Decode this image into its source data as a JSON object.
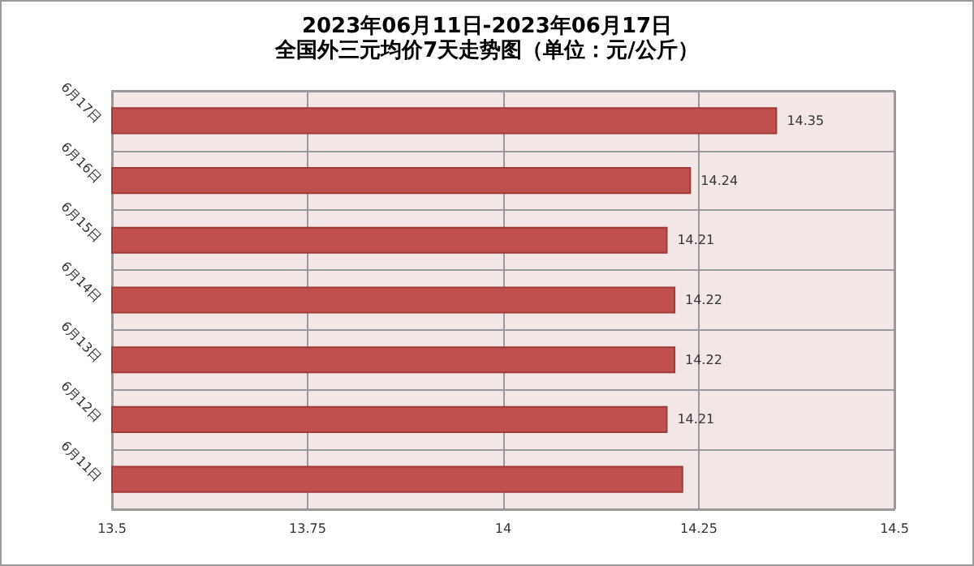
{
  "chart_data": {
    "type": "bar",
    "orientation": "horizontal",
    "title": "2023年06月11日-2023年06月17日",
    "subtitle": "全国外三元均价7天走势图（单位：元/公斤）",
    "categories": [
      "6月17日",
      "6月16日",
      "6月15日",
      "6月14日",
      "6月13日",
      "6月12日",
      "6月11日"
    ],
    "values": [
      14.35,
      14.24,
      14.21,
      14.22,
      14.22,
      14.21,
      14.23
    ],
    "value_labels": [
      "14.35",
      "14.24",
      "14.21",
      "14.22",
      "14.22",
      "14.21",
      null
    ],
    "color": "#c0504d",
    "xlim": [
      13.5,
      14.5
    ],
    "xticks": [
      13.5,
      13.75,
      14,
      14.25,
      14.5
    ],
    "grid": true
  }
}
